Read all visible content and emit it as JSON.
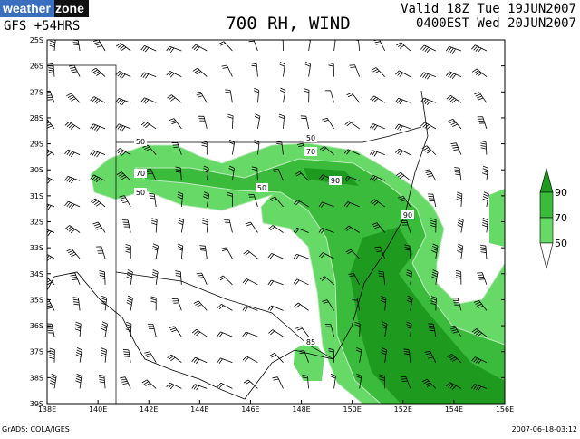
{
  "header": {
    "logo": {
      "part1": "weather",
      "part2": "zone"
    },
    "model": "GFS +54HRS",
    "title": "700 RH, WIND",
    "valid_line1": "Valid 18Z Tue 19JUN2007",
    "valid_line2": "0400EST Wed 20JUN2007"
  },
  "map": {
    "lat_labels": [
      "25S",
      "26S",
      "27S",
      "28S",
      "29S",
      "30S",
      "31S",
      "32S",
      "33S",
      "34S",
      "35S",
      "36S",
      "37S",
      "38S",
      "39S"
    ],
    "lon_labels": [
      "138E",
      "140E",
      "142E",
      "144E",
      "146E",
      "148E",
      "150E",
      "152E",
      "154E",
      "156E"
    ],
    "contour_labels": [
      "50",
      "70",
      "50",
      "50",
      "50",
      "70",
      "90",
      "90",
      "85"
    ]
  },
  "legend": {
    "labels": [
      "90",
      "70",
      "50"
    ]
  },
  "footer": {
    "source": "GrADS: COLA/IGES",
    "timestamp": "2007-06-18-03:12"
  }
}
